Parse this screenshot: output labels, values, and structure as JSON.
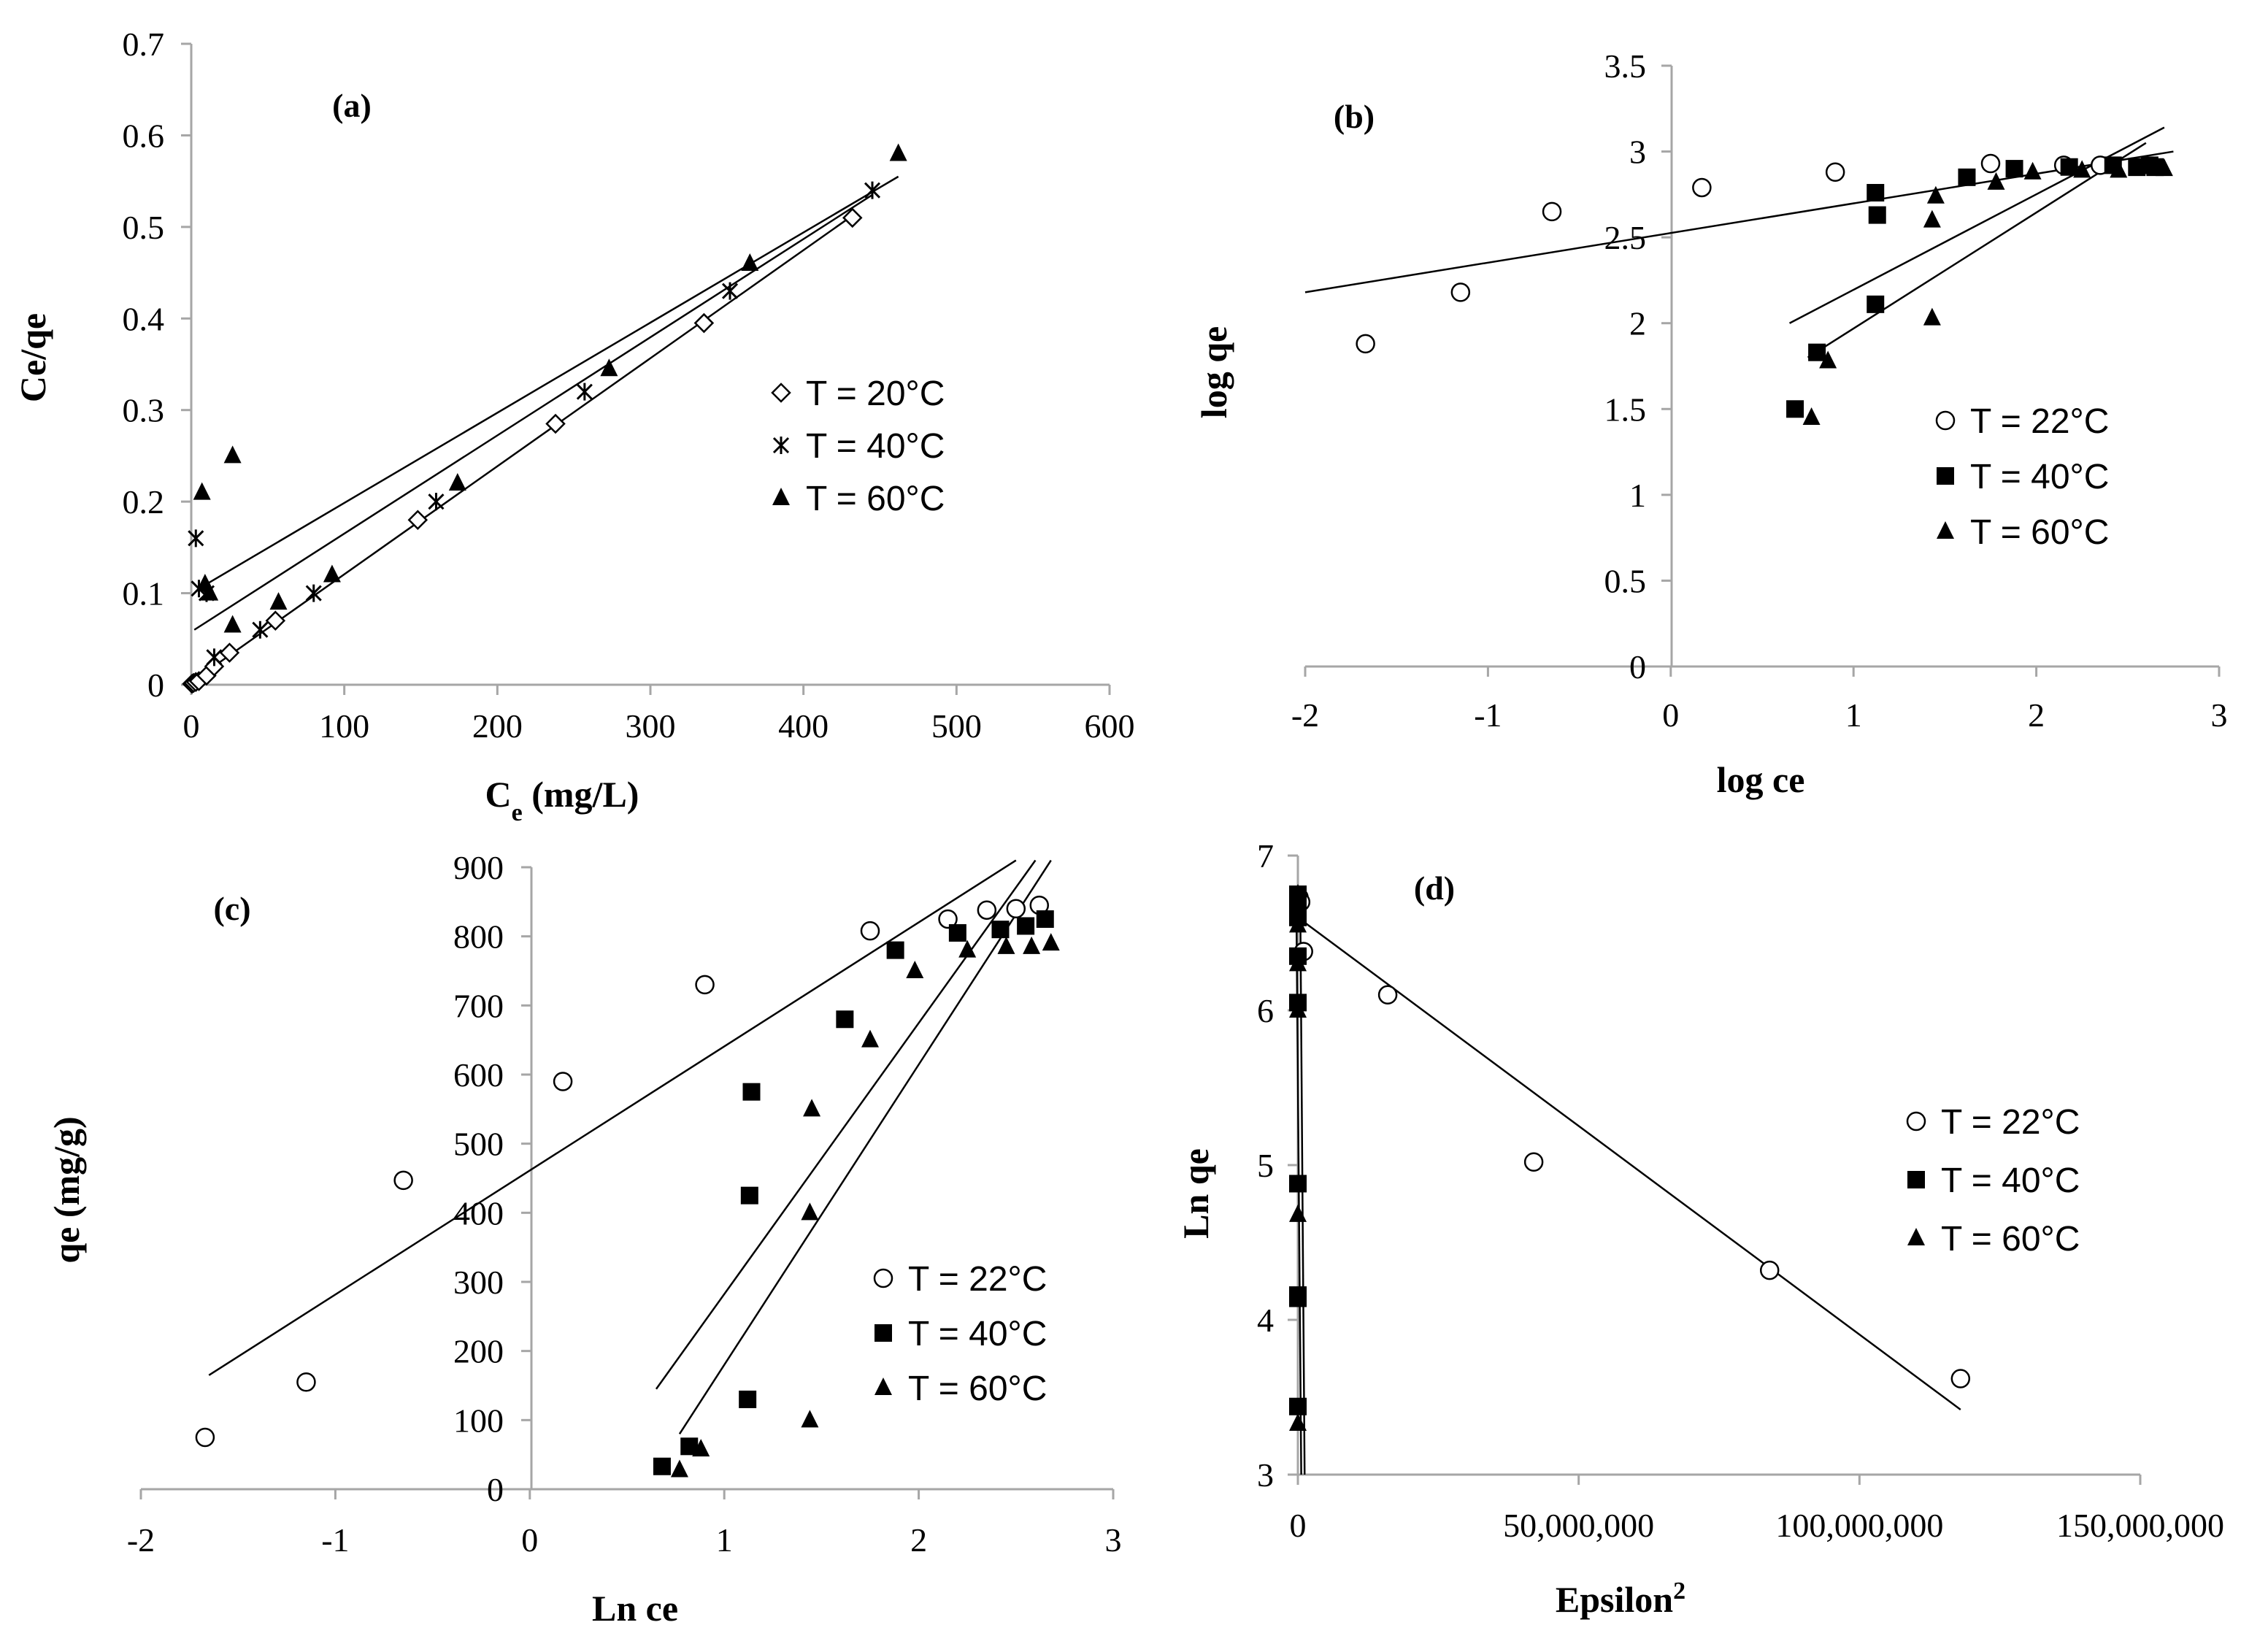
{
  "chart_data": [
    {
      "id": "a",
      "type": "scatter",
      "label": "(a)",
      "xlabel": "C",
      "xlabel_sub": "e",
      "xlabel_unit": " (mg/L)",
      "ylabel": "Ce/qe",
      "xlim": [
        0,
        600
      ],
      "ylim": [
        0,
        0.7
      ],
      "xticks": [
        "0",
        "100",
        "200",
        "300",
        "400",
        "500",
        "600"
      ],
      "yticks": [
        "0",
        "0.1",
        "0.2",
        "0.3",
        "0.4",
        "0.5",
        "0.6",
        "0.7"
      ],
      "xtick_values": [
        0,
        100,
        200,
        300,
        400,
        500,
        600
      ],
      "ytick_values": [
        0,
        0.1,
        0.2,
        0.3,
        0.4,
        0.5,
        0.6,
        0.7
      ],
      "legend_position": "right",
      "series": [
        {
          "name": "T = 20°C",
          "marker": "diamond",
          "x": [
            0.5,
            1.5,
            3,
            5,
            10,
            15,
            25,
            55,
            148,
            238,
            335,
            432
          ],
          "y": [
            0.001,
            0.002,
            0.003,
            0.004,
            0.01,
            0.02,
            0.035,
            0.07,
            0.18,
            0.285,
            0.395,
            0.51
          ]
        },
        {
          "name": "T = 40°C",
          "marker": "x",
          "x": [
            3,
            5,
            10,
            15,
            45,
            80,
            160,
            257,
            352,
            445
          ],
          "y": [
            0.16,
            0.105,
            0.1,
            0.03,
            0.06,
            0.1,
            0.2,
            0.32,
            0.43,
            0.54
          ]
        },
        {
          "name": "T = 60°C",
          "marker": "triangle",
          "x": [
            7,
            9,
            12,
            27,
            27,
            57,
            92,
            174,
            273,
            365,
            462
          ],
          "y": [
            0.21,
            0.11,
            0.1,
            0.25,
            0.065,
            0.09,
            0.12,
            0.22,
            0.345,
            0.46,
            0.58
          ]
        }
      ],
      "trendlines": [
        {
          "x": [
            2,
            430
          ],
          "y": [
            0.005,
            0.51
          ]
        },
        {
          "x": [
            2,
            445
          ],
          "y": [
            0.06,
            0.535
          ]
        },
        {
          "x": [
            5,
            462
          ],
          "y": [
            0.105,
            0.555
          ]
        }
      ]
    },
    {
      "id": "b",
      "type": "scatter",
      "label": "(b)",
      "xlabel": "log ce",
      "ylabel": "log qe",
      "xlim": [
        -2,
        3
      ],
      "ylim": [
        0,
        3.5
      ],
      "xticks": [
        "-2",
        "-1",
        "0",
        "1",
        "2",
        "3"
      ],
      "yticks": [
        "0",
        "0.5",
        "1",
        "1.5",
        "2",
        "2.5",
        "3",
        "3.5"
      ],
      "xtick_values": [
        -2,
        -1,
        0,
        1,
        2,
        3
      ],
      "ytick_values": [
        0,
        0.5,
        1,
        1.5,
        2,
        2.5,
        3,
        3.5
      ],
      "legend_position": "right",
      "series": [
        {
          "name": "T = 22°C",
          "marker": "circle",
          "x": [
            -1.67,
            -1.15,
            -0.65,
            0.17,
            0.9,
            1.75,
            2.15,
            2.35
          ],
          "y": [
            1.88,
            2.18,
            2.65,
            2.79,
            2.88,
            2.93,
            2.92,
            2.92
          ]
        },
        {
          "name": "T = 40°C",
          "marker": "square",
          "x": [
            0.68,
            0.8,
            1.12,
            1.13,
            1.12,
            1.62,
            1.88,
            2.18,
            2.42,
            2.55,
            2.62,
            2.65
          ],
          "y": [
            1.5,
            1.83,
            2.11,
            2.63,
            2.76,
            2.85,
            2.9,
            2.91,
            2.92,
            2.91,
            2.92,
            2.91
          ]
        },
        {
          "name": "T = 60°C",
          "marker": "triangle",
          "x": [
            0.77,
            0.86,
            1.43,
            1.43,
            1.45,
            1.78,
            1.98,
            2.25,
            2.45,
            2.55,
            2.65,
            2.7
          ],
          "y": [
            1.45,
            1.78,
            2.03,
            2.6,
            2.74,
            2.82,
            2.88,
            2.89,
            2.89,
            2.9,
            2.9,
            2.9
          ]
        }
      ],
      "trendlines": [
        {
          "x": [
            -2,
            2.75
          ],
          "y": [
            2.18,
            3.0
          ]
        },
        {
          "x": [
            0.65,
            2.7
          ],
          "y": [
            2.0,
            3.14
          ]
        },
        {
          "x": [
            0.75,
            2.6
          ],
          "y": [
            1.8,
            3.05
          ]
        }
      ]
    },
    {
      "id": "c",
      "type": "scatter",
      "label": "(c)",
      "xlabel": "Ln ce",
      "ylabel": "qe  (mg/g)",
      "xlim": [
        -2,
        3
      ],
      "ylim": [
        0,
        900
      ],
      "xticks": [
        "-2",
        "-1",
        "0",
        "1",
        "2",
        "3"
      ],
      "yticks": [
        "0",
        "100",
        "200",
        "300",
        "400",
        "500",
        "600",
        "700",
        "800",
        "900"
      ],
      "xtick_values": [
        -2,
        -1,
        0,
        1,
        2,
        3
      ],
      "ytick_values": [
        0,
        100,
        200,
        300,
        400,
        500,
        600,
        700,
        800,
        900
      ],
      "legend_position": "bottom-right",
      "series": [
        {
          "name": "T = 22°C",
          "marker": "circle",
          "x": [
            -1.67,
            -1.15,
            -0.65,
            0.17,
            0.9,
            1.75,
            2.15,
            2.35,
            2.5,
            2.62
          ],
          "y": [
            75,
            155,
            447,
            590,
            730,
            808,
            825,
            838,
            840,
            845
          ]
        },
        {
          "name": "T = 40°C",
          "marker": "square",
          "x": [
            0.68,
            0.82,
            1.12,
            1.13,
            1.14,
            1.62,
            1.88,
            2.2,
            2.42,
            2.55,
            2.65
          ],
          "y": [
            33,
            62,
            130,
            425,
            575,
            680,
            780,
            805,
            810,
            815,
            825
          ]
        },
        {
          "name": "T = 60°C",
          "marker": "triangle",
          "x": [
            0.77,
            0.88,
            1.44,
            1.44,
            1.45,
            1.75,
            1.98,
            2.25,
            2.45,
            2.58,
            2.68
          ],
          "y": [
            28,
            58,
            100,
            400,
            550,
            650,
            750,
            780,
            785,
            785,
            790
          ]
        }
      ],
      "trendlines": [
        {
          "x": [
            -1.65,
            2.5
          ],
          "y": [
            165,
            910
          ]
        },
        {
          "x": [
            0.65,
            2.6
          ],
          "y": [
            145,
            910
          ]
        },
        {
          "x": [
            0.77,
            2.68
          ],
          "y": [
            80,
            910
          ]
        }
      ]
    },
    {
      "id": "d",
      "type": "scatter",
      "label": "(d)",
      "xlabel": "Epsilon",
      "xlabel_sup": "2",
      "ylabel": "Ln qe",
      "xlim": [
        0,
        150000000
      ],
      "ylim": [
        3,
        7
      ],
      "xticks": [
        "0",
        "50,000,000",
        "100,000,000",
        "150,000,000"
      ],
      "yticks": [
        "3",
        "4",
        "5",
        "6",
        "7"
      ],
      "xtick_values": [
        0,
        50000000,
        100000000,
        150000000
      ],
      "ytick_values": [
        3,
        4,
        5,
        6,
        7
      ],
      "legend_position": "right",
      "series": [
        {
          "name": "T = 22°C",
          "marker": "circle",
          "x": [
            200000,
            500000,
            1000000,
            16000000,
            42000000,
            84000000,
            118000000
          ],
          "y": [
            6.73,
            6.7,
            6.38,
            6.1,
            5.02,
            4.32,
            3.62
          ]
        },
        {
          "name": "T = 40°C",
          "marker": "square",
          "x": [
            0,
            0,
            0,
            0,
            0,
            0,
            0,
            0,
            0,
            0
          ],
          "y": [
            6.75,
            6.7,
            6.65,
            6.6,
            6.35,
            6.05,
            4.88,
            4.16,
            4.14,
            3.44
          ]
        },
        {
          "name": "T = 60°C",
          "marker": "triangle",
          "x": [
            0,
            0,
            0,
            0,
            0,
            0,
            0,
            0,
            0
          ],
          "y": [
            6.75,
            6.65,
            6.55,
            6.3,
            6.0,
            4.68,
            4.15,
            4.13,
            3.33
          ]
        }
      ],
      "trendlines": [
        {
          "x": [
            0,
            118000000
          ],
          "y": [
            6.6,
            3.42
          ]
        },
        {
          "x": [
            -300000,
            600000
          ],
          "y": [
            6.8,
            3.0
          ]
        },
        {
          "x": [
            400000,
            1200000
          ],
          "y": [
            6.8,
            3.0
          ]
        }
      ]
    }
  ]
}
